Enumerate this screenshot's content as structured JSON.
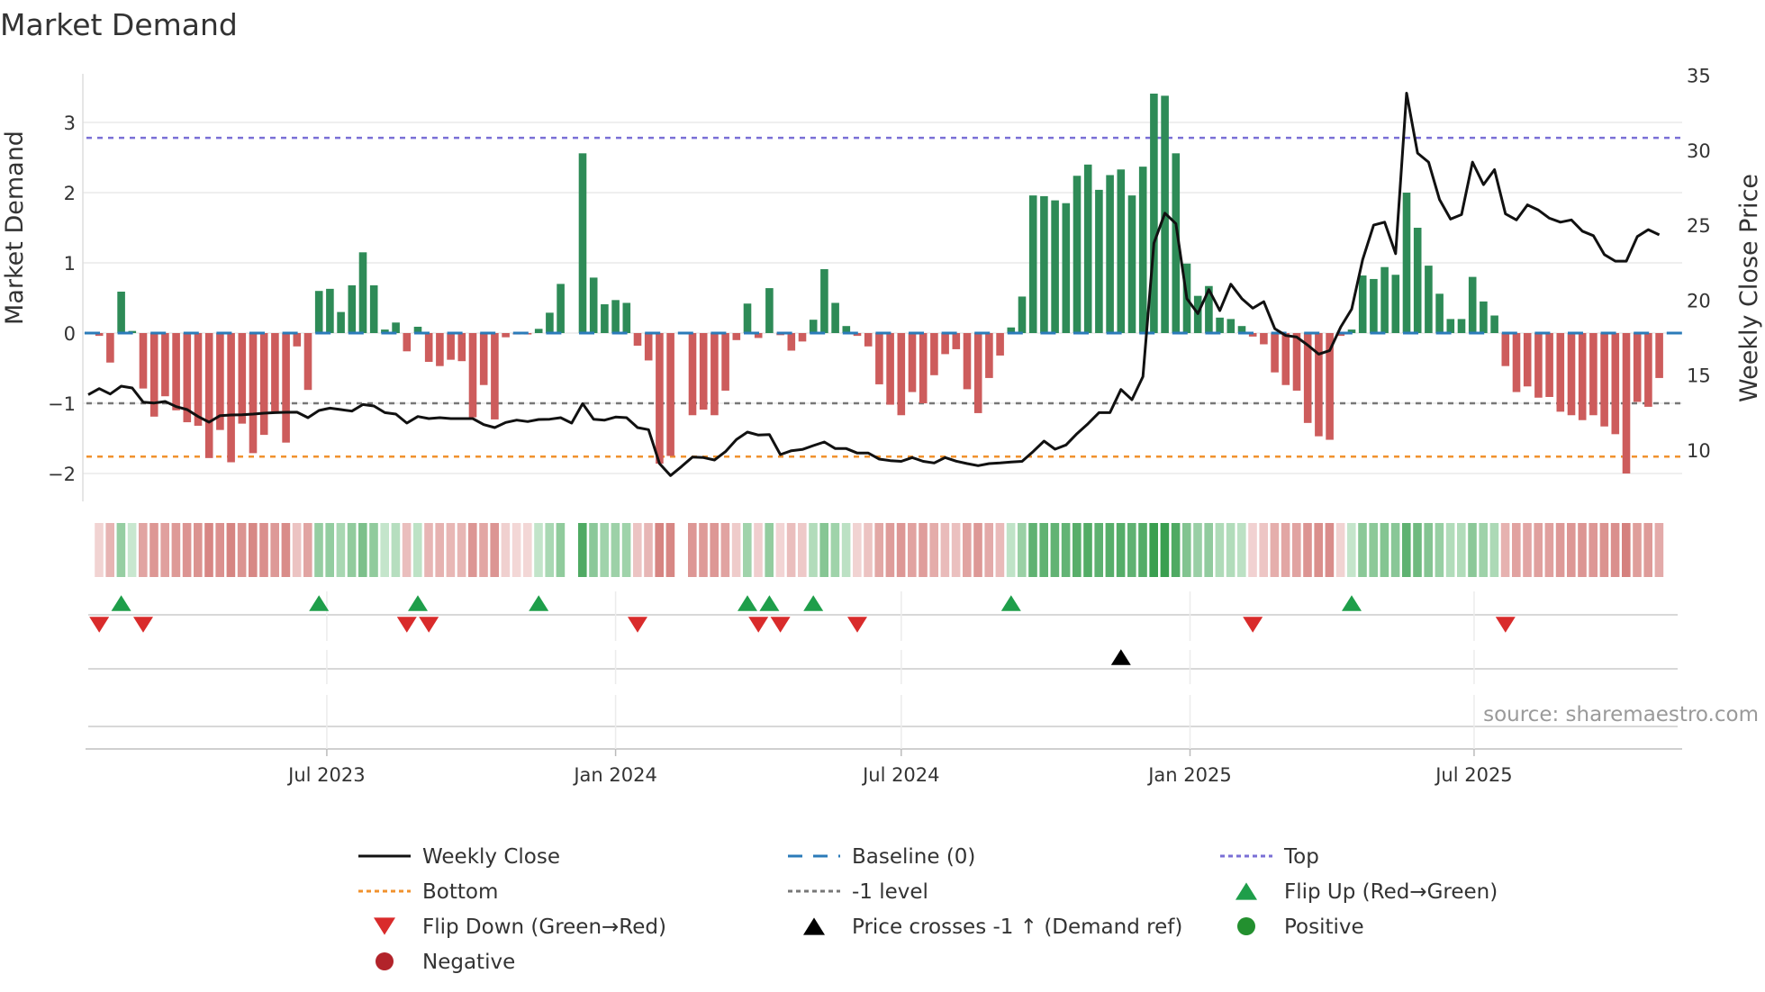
{
  "chart_data": {
    "type": "bar",
    "title": "Market Demand",
    "ylabel": "Market Demand",
    "y2label": "Weekly Close Price",
    "ylim": [
      -2.3,
      3.7
    ],
    "y2lim": [
      7.9,
      35
    ],
    "yticks": [
      "3",
      "2",
      "1",
      "0",
      "−1",
      "−2"
    ],
    "ytick_values": [
      3,
      2,
      1,
      0,
      -1,
      -2
    ],
    "y2ticks": [
      "35",
      "30",
      "25",
      "20",
      "15",
      "10"
    ],
    "y2tick_values": [
      35,
      30,
      25,
      20,
      15,
      10
    ],
    "start_date": "2023-01-30",
    "frequency": "weekly",
    "xticks": [
      {
        "label": "Jul 2023",
        "date": "2023-07-01"
      },
      {
        "label": "Jan 2024",
        "date": "2024-01-01"
      },
      {
        "label": "Jul 2024",
        "date": "2024-07-01"
      },
      {
        "label": "Jan 2025",
        "date": "2025-01-01"
      },
      {
        "label": "Jul 2025",
        "date": "2025-07-01"
      }
    ],
    "levels": {
      "top": 2.78,
      "bottom": -1.76,
      "minus_one": -1,
      "baseline": 0
    },
    "series": [
      {
        "name": "Market Demand",
        "kind": "bar",
        "values": [
          0,
          -0.04,
          -0.42,
          0.59,
          0.03,
          -0.79,
          -1.19,
          -0.9,
          -1.1,
          -1.27,
          -1.32,
          -1.78,
          -1.38,
          -1.84,
          -1.29,
          -1.71,
          -1.45,
          -1.12,
          -1.56,
          -0.19,
          -0.81,
          0.6,
          0.63,
          0.3,
          0.68,
          1.15,
          0.68,
          0.05,
          0.15,
          -0.26,
          0.09,
          -0.41,
          -0.47,
          -0.38,
          -0.4,
          -1.2,
          -0.74,
          -1.23,
          -0.06,
          -0.02,
          -0.02,
          0.06,
          0.29,
          0.7,
          0,
          2.56,
          0.79,
          0.41,
          0.47,
          0.43,
          -0.18,
          -0.39,
          -1.86,
          -1.75,
          0,
          -1.17,
          -1.09,
          -1.17,
          -0.82,
          -0.1,
          0.42,
          -0.07,
          0.64,
          -0.03,
          -0.25,
          -0.12,
          0.19,
          0.91,
          0.43,
          0.1,
          -0.04,
          -0.19,
          -0.73,
          -1.02,
          -1.17,
          -0.84,
          -1.0,
          -0.6,
          -0.3,
          -0.23,
          -0.8,
          -1.14,
          -0.64,
          -0.32,
          0.08,
          0.52,
          1.96,
          1.95,
          1.89,
          1.85,
          2.24,
          2.4,
          2.04,
          2.25,
          2.33,
          1.96,
          2.37,
          3.41,
          3.38,
          2.56,
          0.99,
          0.53,
          0.67,
          0.22,
          0.2,
          0.1,
          -0.05,
          -0.16,
          -0.56,
          -0.74,
          -0.82,
          -1.28,
          -1.47,
          -1.52,
          -0.04,
          0.05,
          0.82,
          0.77,
          0.94,
          0.83,
          2.0,
          1.5,
          0.96,
          0.56,
          0.2,
          0.2,
          0.8,
          0.45,
          0.25,
          -0.47,
          -0.84,
          -0.76,
          -0.92,
          -0.91,
          -1.12,
          -1.17,
          -1.24,
          -1.17,
          -1.33,
          -1.44,
          -2.0,
          -0.98,
          -1.05,
          -0.64
        ]
      },
      {
        "name": "Weekly Close",
        "kind": "line",
        "axis": "right",
        "values": [
          13.7,
          14.1,
          13.74,
          14.26,
          14.14,
          13.2,
          13.14,
          13.24,
          12.9,
          12.7,
          12.24,
          11.86,
          12.3,
          12.34,
          12.36,
          12.4,
          12.46,
          12.5,
          12.52,
          12.53,
          12.16,
          12.64,
          12.8,
          12.7,
          12.6,
          13.04,
          12.94,
          12.5,
          12.4,
          11.8,
          12.24,
          12.1,
          12.16,
          12.1,
          12.1,
          12.1,
          11.7,
          11.5,
          11.84,
          12.0,
          11.9,
          12.04,
          12.06,
          12.16,
          11.8,
          13.1,
          12.06,
          12.0,
          12.2,
          12.16,
          11.5,
          11.36,
          9.1,
          8.3,
          8.9,
          9.54,
          9.5,
          9.34,
          9.9,
          10.7,
          11.2,
          11.0,
          11.04,
          9.7,
          9.96,
          10.04,
          10.3,
          10.54,
          10.1,
          10.1,
          9.8,
          9.8,
          9.4,
          9.3,
          9.25,
          9.5,
          9.25,
          9.14,
          9.5,
          9.26,
          9.1,
          8.96,
          9.1,
          9.14,
          9.2,
          9.25,
          9.9,
          10.6,
          10.06,
          10.34,
          11.1,
          11.76,
          12.5,
          12.5,
          14.04,
          13.36,
          14.9,
          23.8,
          25.8,
          25.1,
          20.1,
          19.1,
          20.7,
          19.3,
          21.06,
          20.1,
          19.46,
          19.9,
          18.1,
          17.64,
          17.54,
          17.0,
          16.4,
          16.64,
          18.2,
          19.4,
          22.7,
          25.0,
          25.2,
          23.1,
          33.8,
          29.8,
          29.2,
          26.7,
          25.4,
          25.7,
          29.2,
          27.7,
          28.7,
          25.75,
          25.35,
          26.35,
          26.0,
          25.46,
          25.2,
          25.35,
          24.6,
          24.3,
          23.04,
          22.6,
          22.6,
          24.24,
          24.7,
          24.35
        ]
      }
    ],
    "events": {
      "flip_up_index": [
        3,
        21,
        30,
        41,
        60,
        62,
        66,
        84,
        115
      ],
      "flip_down_index": [
        1,
        5,
        29,
        31,
        50,
        61,
        63,
        70,
        106,
        129
      ],
      "price_cross_index": [
        94
      ]
    },
    "legend": {
      "placement": "bottom",
      "items": [
        {
          "label": "Weekly Close",
          "symbol": "solid-line",
          "color": "#111111"
        },
        {
          "label": "Baseline (0)",
          "symbol": "dashed-line",
          "color": "#2b7bb9"
        },
        {
          "label": "Top",
          "symbol": "dotted-line",
          "color": "#7a6fd6"
        },
        {
          "label": "Bottom",
          "symbol": "dotted-line",
          "color": "#f0922e"
        },
        {
          "label": "-1 level",
          "symbol": "dotted-line",
          "color": "#777777"
        },
        {
          "label": "Flip Up (Red→Green)",
          "symbol": "triangle-up",
          "color": "#1e9e4a"
        },
        {
          "label": "Flip Down (Green→Red)",
          "symbol": "triangle-down",
          "color": "#d92b2b"
        },
        {
          "label": "Price crosses -1 ↑ (Demand ref)",
          "symbol": "triangle-up",
          "color": "#000000"
        },
        {
          "label": "Positive",
          "symbol": "circle",
          "color": "#23902f"
        },
        {
          "label": "Negative",
          "symbol": "circle",
          "color": "#b2232a"
        }
      ]
    },
    "grid": true
  },
  "colors": {
    "positive_bar": "#2e8b57",
    "negative_bar": "#cd5c5c",
    "heat_pos_light": "#d7efdc",
    "heat_pos_dark": "#3a9f50",
    "heat_neg_light": "#f6e0e0",
    "heat_neg_dark": "#d5817e"
  },
  "source": "source: sharemaestro.com"
}
